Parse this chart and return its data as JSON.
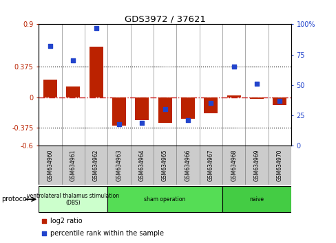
{
  "title": "GDS3972 / 37621",
  "samples": [
    "GSM634960",
    "GSM634961",
    "GSM634962",
    "GSM634963",
    "GSM634964",
    "GSM634965",
    "GSM634966",
    "GSM634967",
    "GSM634968",
    "GSM634969",
    "GSM634970"
  ],
  "log2_ratio": [
    0.22,
    0.13,
    0.62,
    -0.35,
    -0.28,
    -0.32,
    -0.27,
    -0.2,
    0.02,
    -0.02,
    -0.1
  ],
  "percentile_rank": [
    82,
    70,
    97,
    18,
    19,
    30,
    21,
    35,
    65,
    51,
    37
  ],
  "ylim_left": [
    -0.6,
    0.9
  ],
  "ylim_right": [
    0,
    100
  ],
  "yticks_left": [
    -0.6,
    -0.375,
    0,
    0.375,
    0.9
  ],
  "yticks_right": [
    0,
    25,
    50,
    75,
    100
  ],
  "hlines": [
    0.375,
    -0.375
  ],
  "bar_color": "#bb2200",
  "scatter_color": "#2244cc",
  "zero_line_color": "#cc2222",
  "protocol_groups": [
    {
      "label": "ventrolateral thalamus stimulation\n(DBS)",
      "start": 0,
      "end": 3,
      "color": "#ccffcc"
    },
    {
      "label": "sham operation",
      "start": 3,
      "end": 8,
      "color": "#55dd55"
    },
    {
      "label": "naive",
      "start": 8,
      "end": 11,
      "color": "#44cc44"
    }
  ],
  "legend_bar_label": "log2 ratio",
  "legend_scatter_label": "percentile rank within the sample",
  "sample_box_color": "#cccccc",
  "sample_box_edge": "#888888"
}
